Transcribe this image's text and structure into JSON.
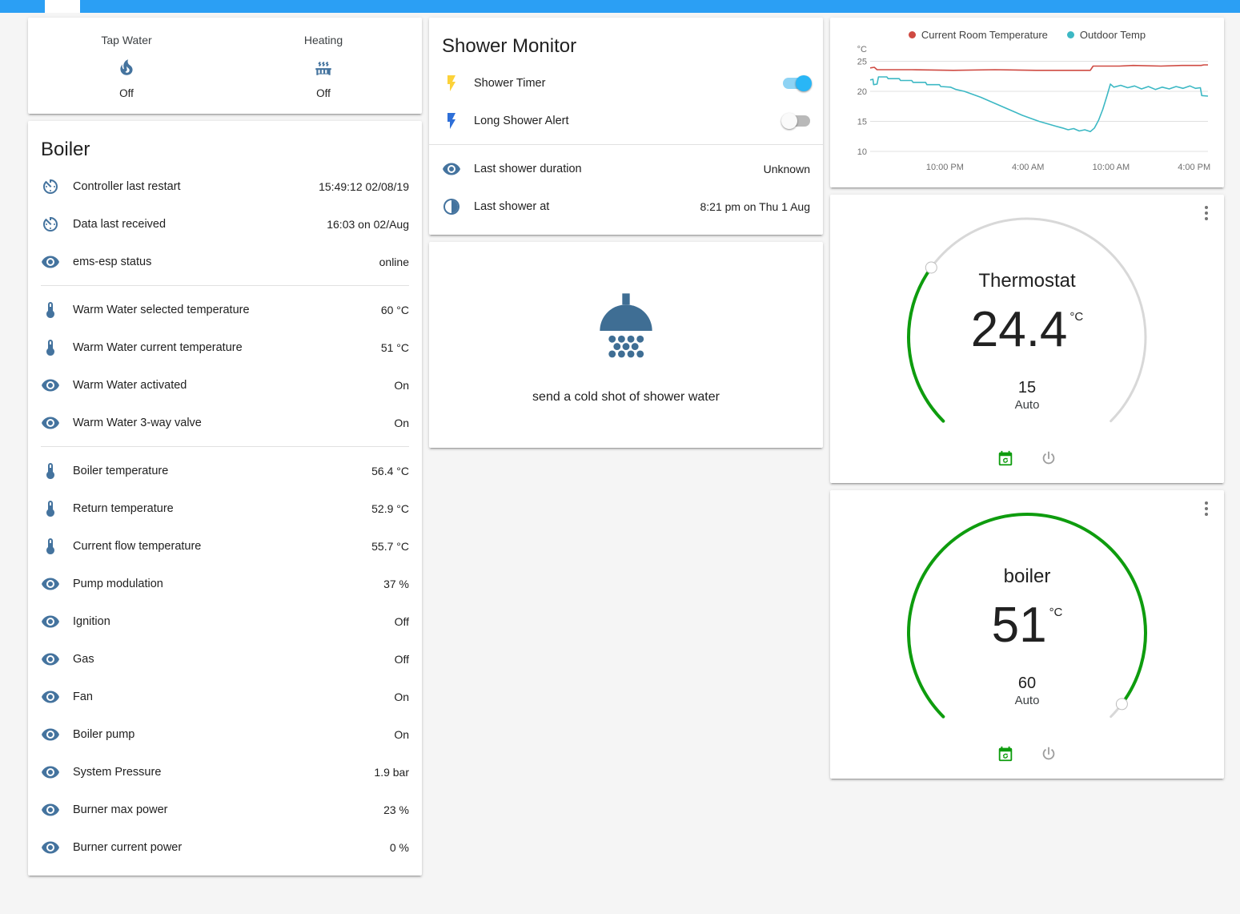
{
  "colors": {
    "topbar": "#2b9ff4",
    "icon": "#44739e",
    "shower_icon": "#3f6e94",
    "accent": "#29b6f6",
    "arc_green": "#0e9c0e",
    "arc_track": "#d8d8d8",
    "flash_yellow": "#fcd23a",
    "flash_blue": "#2e6fd8",
    "series_red": "#cf4a42",
    "series_teal": "#3cb8c4"
  },
  "glance": {
    "items": [
      {
        "label": "Tap Water",
        "icon": "fire",
        "state": "Off"
      },
      {
        "label": "Heating",
        "icon": "radiator",
        "state": "Off"
      }
    ]
  },
  "boiler_card": {
    "title": "Boiler",
    "rows": [
      {
        "icon": "av-timer",
        "name": "Controller last restart",
        "value": "15:49:12 02/08/19"
      },
      {
        "icon": "av-timer",
        "name": "Data last received",
        "value": "16:03 on 02/Aug"
      },
      {
        "icon": "eye",
        "name": "ems-esp status",
        "value": "online"
      },
      {
        "icon": "thermometer",
        "name": "Warm Water selected temperature",
        "value": "60 °C",
        "divider": true
      },
      {
        "icon": "thermometer",
        "name": "Warm Water current temperature",
        "value": "51 °C"
      },
      {
        "icon": "eye",
        "name": "Warm Water activated",
        "value": "On"
      },
      {
        "icon": "eye",
        "name": "Warm Water 3-way valve",
        "value": "On"
      },
      {
        "icon": "thermometer",
        "name": "Boiler temperature",
        "value": "56.4 °C",
        "divider": true
      },
      {
        "icon": "thermometer",
        "name": "Return temperature",
        "value": "52.9 °C"
      },
      {
        "icon": "thermometer",
        "name": "Current flow temperature",
        "value": "55.7 °C"
      },
      {
        "icon": "eye",
        "name": "Pump modulation",
        "value": "37 %"
      },
      {
        "icon": "eye",
        "name": "Ignition",
        "value": "Off"
      },
      {
        "icon": "eye",
        "name": "Gas",
        "value": "Off"
      },
      {
        "icon": "eye",
        "name": "Fan",
        "value": "On"
      },
      {
        "icon": "eye",
        "name": "Boiler pump",
        "value": "On"
      },
      {
        "icon": "eye",
        "name": "System Pressure",
        "value": "1.9 bar"
      },
      {
        "icon": "eye",
        "name": "Burner max power",
        "value": "23 %"
      },
      {
        "icon": "eye",
        "name": "Burner current power",
        "value": "0 %"
      }
    ]
  },
  "shower_monitor": {
    "title": "Shower Monitor",
    "rows": [
      {
        "icon": "flash-yellow",
        "name": "Shower Timer",
        "control": "toggle-on"
      },
      {
        "icon": "flash-blue",
        "name": "Long Shower Alert",
        "control": "toggle-off"
      },
      {
        "icon": "eye",
        "name": "Last shower duration",
        "value": "Unknown",
        "divider": true
      },
      {
        "icon": "moon",
        "name": "Last shower at",
        "value": "8:21 pm on Thu 1 Aug"
      }
    ]
  },
  "shower_button": {
    "icon": "shower-head",
    "label": "send a cold shot of shower water"
  },
  "chart_data": {
    "type": "line",
    "title": "",
    "unit": "°C",
    "ylim": [
      10,
      26
    ],
    "yticks": [
      25,
      20,
      15,
      10
    ],
    "x_span_hours": 24.4,
    "xticks": [
      {
        "hour": 5.4,
        "label": "10:00 PM"
      },
      {
        "hour": 11.4,
        "label": "4:00 AM"
      },
      {
        "hour": 17.4,
        "label": "10:00 AM"
      },
      {
        "hour": 23.4,
        "label": "4:00 PM"
      }
    ],
    "grid": true,
    "legend_position": "top",
    "series": [
      {
        "name": "Current Room Temperature",
        "color": "#cf4a42",
        "points": [
          [
            0,
            23.9
          ],
          [
            0.3,
            24.0
          ],
          [
            0.5,
            23.6
          ],
          [
            3,
            23.6
          ],
          [
            6,
            23.5
          ],
          [
            9,
            23.6
          ],
          [
            12,
            23.5
          ],
          [
            14,
            23.5
          ],
          [
            15.9,
            23.5
          ],
          [
            16.1,
            24.2
          ],
          [
            18,
            24.2
          ],
          [
            19,
            24.3
          ],
          [
            21,
            24.2
          ],
          [
            22.5,
            24.3
          ],
          [
            23.9,
            24.3
          ],
          [
            24.1,
            24.4
          ],
          [
            24.4,
            24.4
          ]
        ]
      },
      {
        "name": "Outdoor Temp",
        "color": "#3cb8c4",
        "points": [
          [
            0,
            21.9
          ],
          [
            0.2,
            22.0
          ],
          [
            0.25,
            21.1
          ],
          [
            0.5,
            21.2
          ],
          [
            0.6,
            22.4
          ],
          [
            1.2,
            22.4
          ],
          [
            1.3,
            22.1
          ],
          [
            2.1,
            22.1
          ],
          [
            2.2,
            21.8
          ],
          [
            3.0,
            21.8
          ],
          [
            3.1,
            21.5
          ],
          [
            4.0,
            21.5
          ],
          [
            4.1,
            21.1
          ],
          [
            5.0,
            21.1
          ],
          [
            5.1,
            20.8
          ],
          [
            5.8,
            20.7
          ],
          [
            6.2,
            20.3
          ],
          [
            6.8,
            20.0
          ],
          [
            7.4,
            19.5
          ],
          [
            8.0,
            19.0
          ],
          [
            8.6,
            18.4
          ],
          [
            9.2,
            17.8
          ],
          [
            9.8,
            17.2
          ],
          [
            10.4,
            16.6
          ],
          [
            11.0,
            16.0
          ],
          [
            11.6,
            15.5
          ],
          [
            12.2,
            15.0
          ],
          [
            12.8,
            14.6
          ],
          [
            13.4,
            14.2
          ],
          [
            13.9,
            13.9
          ],
          [
            14.3,
            13.6
          ],
          [
            14.7,
            13.8
          ],
          [
            15.1,
            13.4
          ],
          [
            15.5,
            13.6
          ],
          [
            15.9,
            13.3
          ],
          [
            16.2,
            13.9
          ],
          [
            16.5,
            15.2
          ],
          [
            16.8,
            17.0
          ],
          [
            17.1,
            19.2
          ],
          [
            17.35,
            21.2
          ],
          [
            17.6,
            20.7
          ],
          [
            18.1,
            21.0
          ],
          [
            18.6,
            20.6
          ],
          [
            19.1,
            20.9
          ],
          [
            19.6,
            20.4
          ],
          [
            20.1,
            20.8
          ],
          [
            20.6,
            20.3
          ],
          [
            21.1,
            20.7
          ],
          [
            21.6,
            20.4
          ],
          [
            22.1,
            20.8
          ],
          [
            22.6,
            20.5
          ],
          [
            23.1,
            20.9
          ],
          [
            23.5,
            20.5
          ],
          [
            23.85,
            20.6
          ],
          [
            23.95,
            19.3
          ],
          [
            24.4,
            19.2
          ]
        ]
      }
    ]
  },
  "thermostat": {
    "title": "Thermostat",
    "temperature": "24.4",
    "unit": "°C",
    "setpoint": "15",
    "mode": "Auto",
    "fraction": 0.3
  },
  "boiler_dial": {
    "title": "boiler",
    "temperature": "51",
    "unit": "°C",
    "setpoint": "60",
    "mode": "Auto",
    "fraction": 0.97
  }
}
